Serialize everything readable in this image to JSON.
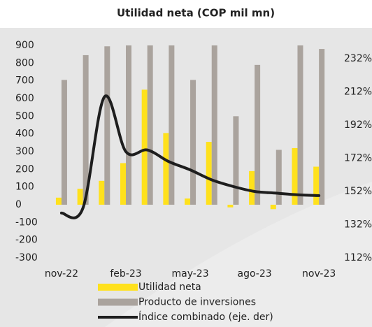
{
  "chart_data": {
    "type": "bar",
    "title": "Utilidad neta (COP mil mn)",
    "categories": [
      "nov-22",
      null,
      null,
      "feb-23",
      null,
      null,
      "may-23",
      null,
      null,
      "ago-23",
      null,
      null,
      "nov-23"
    ],
    "series": [
      {
        "name": "Utilidad neta",
        "color": "#ffe11c",
        "values": [
          40,
          90,
          135,
          235,
          650,
          405,
          35,
          355,
          -15,
          190,
          -25,
          320,
          215
        ]
      },
      {
        "name": "Producto de inversiones",
        "color": "#aaa39d",
        "values": [
          705,
          845,
          895,
          900,
          900,
          900,
          705,
          900,
          500,
          790,
          310,
          900,
          880
        ]
      },
      {
        "name": "Índice combinado (eje. der)",
        "color": "#1e1e1e",
        "type": "line",
        "axis": "y2",
        "values": [
          139,
          142,
          209,
          176,
          177,
          170,
          165,
          159,
          155,
          152,
          151,
          150,
          149.5
        ]
      }
    ],
    "ylim": [
      -300,
      900
    ],
    "yticks": [
      -300,
      -200,
      -100,
      0,
      100,
      200,
      300,
      400,
      500,
      600,
      700,
      800,
      900
    ],
    "y2lim": [
      112,
      240
    ],
    "y2ticks": [
      {
        "value": 112,
        "label": "112%"
      },
      {
        "value": 132,
        "label": "132%"
      },
      {
        "value": 152,
        "label": "152%"
      },
      {
        "value": 172,
        "label": "172%"
      },
      {
        "value": 192,
        "label": "192%"
      },
      {
        "value": 212,
        "label": "212%"
      },
      {
        "value": 232,
        "label": "232%"
      }
    ],
    "grid": false
  }
}
